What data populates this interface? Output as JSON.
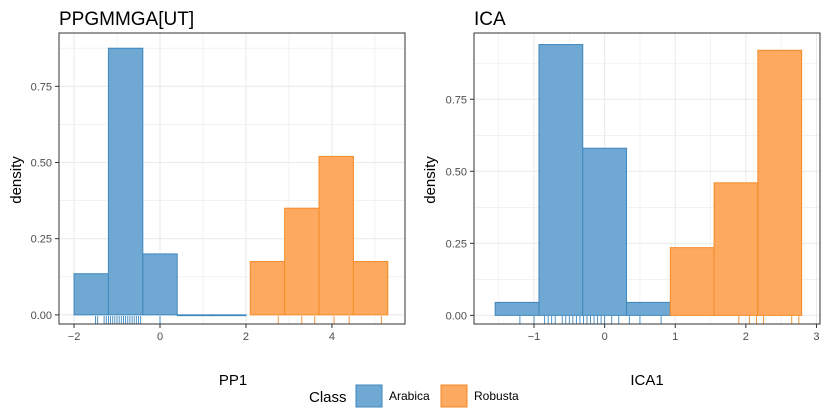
{
  "colors": {
    "arabica_fill": "#6FA8D2",
    "arabica_stroke": "#3E87BF",
    "robusta_fill": "#FDAA60",
    "robusta_stroke": "#F58A26",
    "grid": "#EBEBEB",
    "panel_border": "#333333"
  },
  "legend": {
    "title": "Class",
    "entries": [
      "Arabica",
      "Robusta"
    ]
  },
  "chart_data": [
    {
      "type": "histogram",
      "title": "PPGMMGA[UT]",
      "xlabel": "PP1",
      "ylabel": "density",
      "xlim": [
        -2.35,
        5.7
      ],
      "ylim": [
        -0.03,
        0.925
      ],
      "xticks": [
        -2,
        0,
        2,
        4
      ],
      "xtick_labels": [
        "−2",
        "0",
        "2",
        "4"
      ],
      "yticks": [
        0,
        0.25,
        0.5,
        0.75
      ],
      "ytick_labels": [
        "0.00",
        "0.25",
        "0.50",
        "0.75"
      ],
      "series": [
        {
          "name": "Arabica",
          "bins": [
            {
              "x0": -2.0,
              "x1": -1.2,
              "density": 0.135
            },
            {
              "x0": -1.2,
              "x1": -0.4,
              "density": 0.875
            },
            {
              "x0": -0.4,
              "x1": 0.4,
              "density": 0.2
            },
            {
              "x0": 0.4,
              "x1": 1.2,
              "density": 0
            },
            {
              "x0": 1.2,
              "x1": 2.0,
              "density": 0
            }
          ],
          "rug": [
            -1.5,
            -1.45,
            -1.3,
            -1.25,
            -1.2,
            -1.15,
            -1.1,
            -1.05,
            -1.0,
            -0.95,
            -0.9,
            -0.85,
            -0.8,
            -0.75,
            -0.7,
            -0.65,
            -0.6,
            -0.55,
            -0.5,
            -0.45,
            0.0
          ]
        },
        {
          "name": "Robusta",
          "bins": [
            {
              "x0": 2.1,
              "x1": 2.9,
              "density": 0.175
            },
            {
              "x0": 2.9,
              "x1": 3.7,
              "density": 0.35
            },
            {
              "x0": 3.7,
              "x1": 4.5,
              "density": 0.52
            },
            {
              "x0": 4.5,
              "x1": 5.3,
              "density": 0.175
            }
          ],
          "rug": [
            2.75,
            3.3,
            3.6,
            4.05,
            4.4,
            5.15
          ]
        }
      ]
    },
    {
      "type": "histogram",
      "title": "ICA",
      "xlabel": "ICA1",
      "ylabel": "density",
      "xlim": [
        -1.85,
        3.05
      ],
      "ylim": [
        -0.03,
        0.98
      ],
      "xticks": [
        -1,
        0,
        1,
        2,
        3
      ],
      "xtick_labels": [
        "−1",
        "0",
        "1",
        "2",
        "3"
      ],
      "yticks": [
        0,
        0.25,
        0.5,
        0.75
      ],
      "ytick_labels": [
        "0.00",
        "0.25",
        "0.50",
        "0.75"
      ],
      "series": [
        {
          "name": "Arabica",
          "bins": [
            {
              "x0": -1.55,
              "x1": -0.93,
              "density": 0.045
            },
            {
              "x0": -0.93,
              "x1": -0.31,
              "density": 0.94
            },
            {
              "x0": -0.31,
              "x1": 0.31,
              "density": 0.58
            },
            {
              "x0": 0.31,
              "x1": 0.93,
              "density": 0.045
            }
          ],
          "rug": [
            -0.85,
            -0.8,
            -0.75,
            -0.7,
            -0.6,
            -0.55,
            -0.5,
            -0.45,
            -0.4,
            -0.35,
            -0.3,
            -0.25,
            -0.2,
            -0.15,
            -0.1,
            -0.05,
            0.0,
            0.1,
            0.2,
            0.35,
            0.5,
            0.8,
            -1.2,
            -1.0
          ]
        },
        {
          "name": "Robusta",
          "bins": [
            {
              "x0": 0.93,
              "x1": 1.55,
              "density": 0.235
            },
            {
              "x0": 1.55,
              "x1": 2.17,
              "density": 0.46
            },
            {
              "x0": 2.17,
              "x1": 2.79,
              "density": 0.92
            }
          ],
          "rug": [
            1.9,
            2.05,
            2.15,
            2.25,
            2.65,
            2.75
          ]
        }
      ]
    }
  ]
}
